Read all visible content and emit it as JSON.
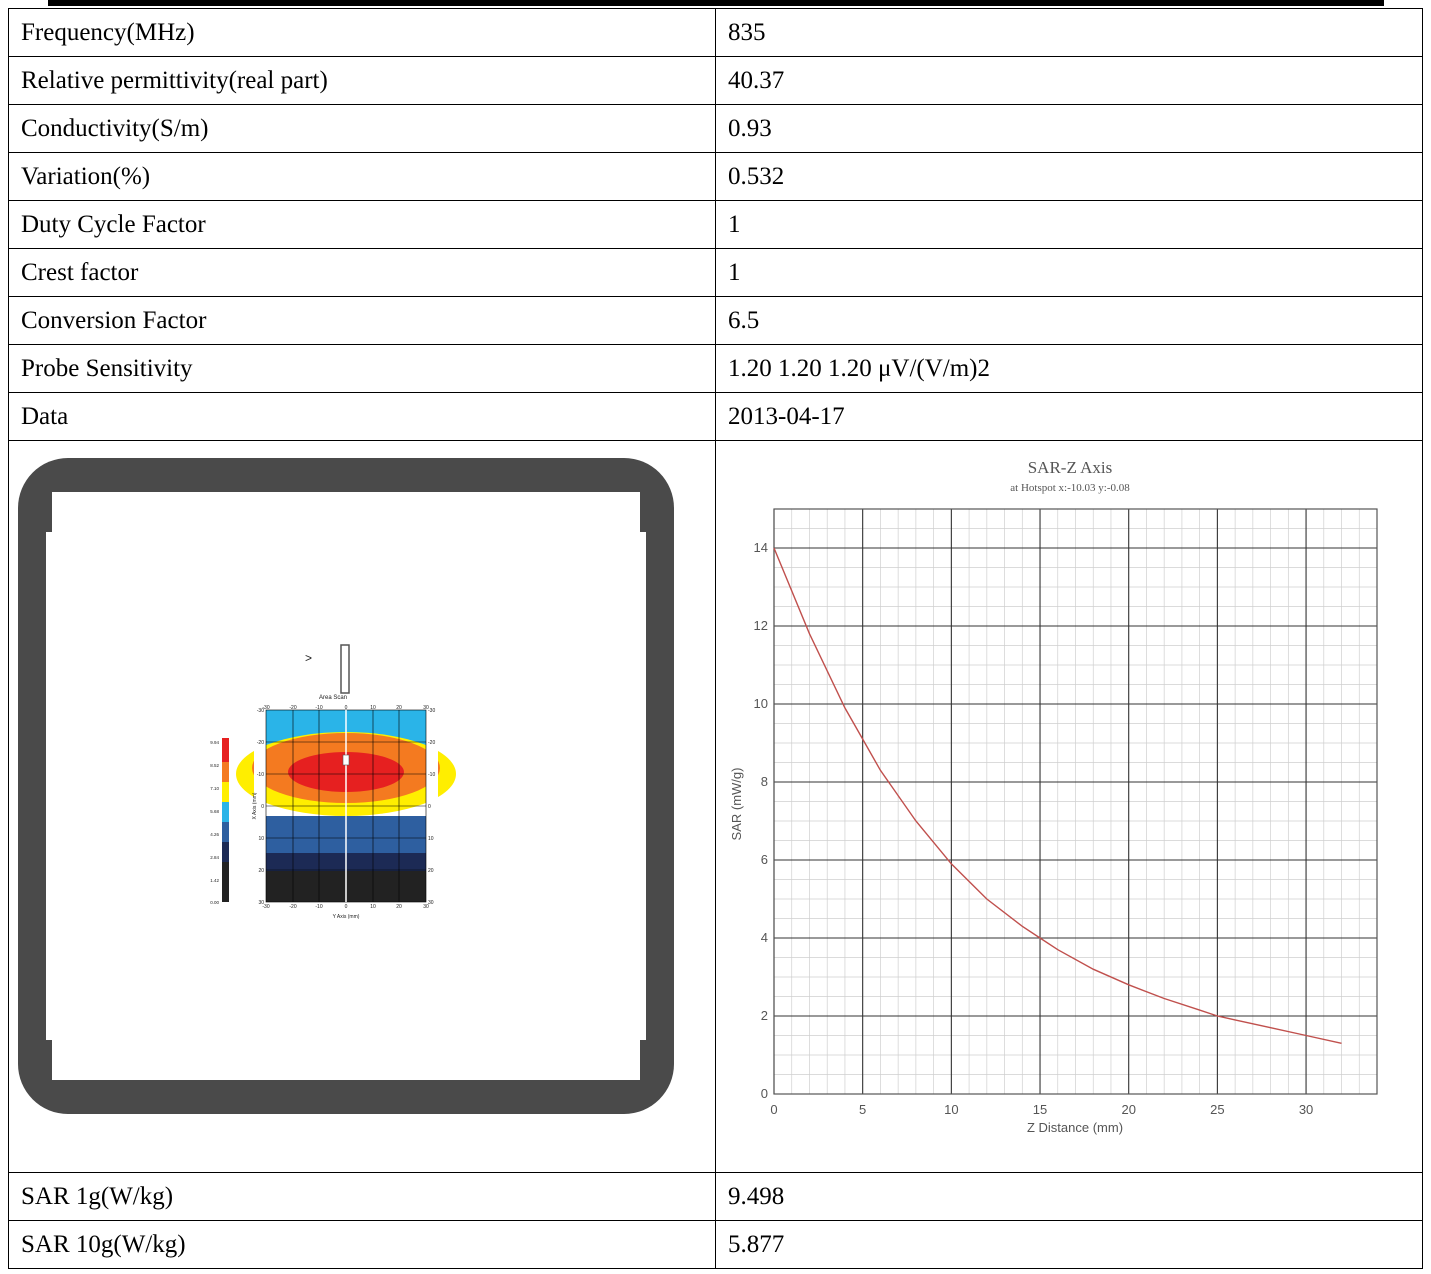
{
  "rows": [
    {
      "label": "Frequency(MHz)",
      "value": "835"
    },
    {
      "label": "Relative permittivity(real part)",
      "value": "40.37"
    },
    {
      "label": "Conductivity(S/m)",
      "value": "0.93"
    },
    {
      "label": "Variation(%)",
      "value": "0.532"
    },
    {
      "label": "Duty Cycle Factor",
      "value": "1"
    },
    {
      "label": "Crest factor",
      "value": "1"
    },
    {
      "label": "Conversion Factor",
      "value": "6.5"
    },
    {
      "label": "Probe Sensitivity",
      "value": "1.20 1.20 1.20  μV/(V/m)2"
    },
    {
      "label": "Data",
      "value": "2013-04-17"
    }
  ],
  "results": [
    {
      "label": "SAR 1g(W/kg)",
      "value": "9.498"
    },
    {
      "label": "SAR 10g(W/kg)",
      "value": "5.877"
    }
  ],
  "area_scan": {
    "label": "Area Scan",
    "x_label": "Y Axis (mm)",
    "y_label": "X Axis (mm)",
    "ticks": [
      "-30",
      "-20",
      "-10",
      "0",
      "10",
      "20",
      "30"
    ],
    "legend_values": [
      "9.94",
      "8.52",
      "7.10",
      "5.68",
      "4.26",
      "2.84",
      "1.42",
      "0.00"
    ],
    "colors": [
      "#e62020",
      "#f47a20",
      "#ffee00",
      "#2ab4e8",
      "#2e5fa0",
      "#1c2a55",
      "#222222"
    ]
  },
  "chart_data": {
    "type": "line",
    "title": "SAR-Z Axis",
    "subtitle": "at Hotspot x:-10.03 y:-0.08",
    "xlabel": "Z Distance (mm)",
    "ylabel": "SAR (mW/g)",
    "xlim": [
      0,
      34
    ],
    "ylim": [
      0,
      15
    ],
    "x_ticks": [
      0,
      5,
      10,
      15,
      20,
      25,
      30
    ],
    "y_ticks": [
      0,
      2,
      4,
      6,
      8,
      10,
      12,
      14
    ],
    "grid": true,
    "color": "#c0504d",
    "x": [
      0,
      2,
      4,
      5,
      6,
      8,
      10,
      12,
      14,
      15,
      16,
      18,
      20,
      22,
      24,
      25,
      26,
      28,
      30,
      32
    ],
    "y": [
      14.0,
      11.8,
      9.9,
      9.1,
      8.3,
      7.0,
      5.9,
      5.0,
      4.3,
      4.0,
      3.7,
      3.2,
      2.8,
      2.45,
      2.15,
      2.0,
      1.9,
      1.7,
      1.5,
      1.3
    ]
  }
}
